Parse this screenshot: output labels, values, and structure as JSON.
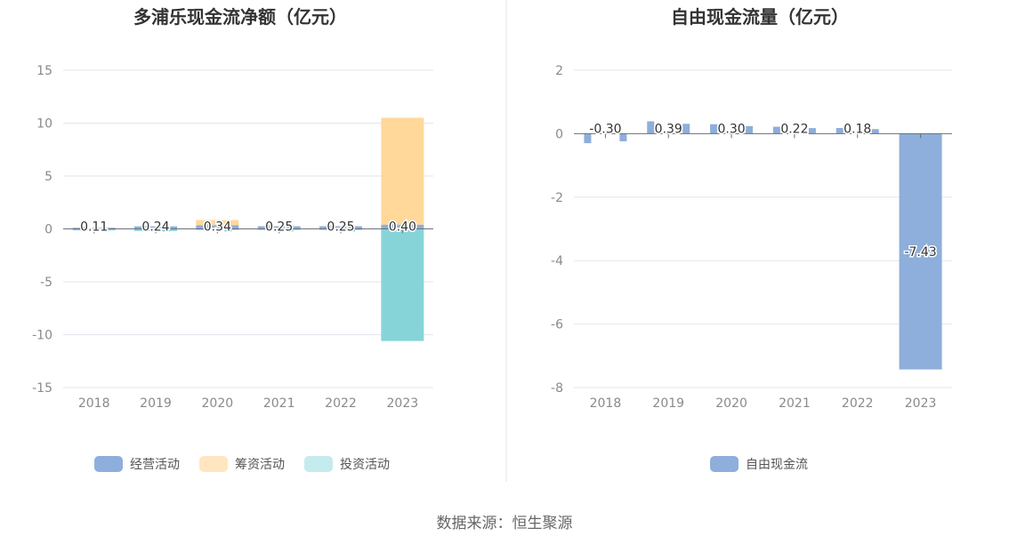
{
  "source": "数据来源：恒生聚源",
  "chart_data": [
    {
      "type": "bar",
      "title": "多浦乐现金流净额（亿元）",
      "categories": [
        "2018",
        "2019",
        "2020",
        "2021",
        "2022",
        "2023"
      ],
      "ylim": [
        -15,
        15
      ],
      "yticks": [
        15,
        10,
        5,
        0,
        -5,
        -10,
        -15
      ],
      "grid": true,
      "legend_position": "bottom",
      "series": [
        {
          "name": "经营活动",
          "color": "#8eaedb",
          "values": [
            0.11,
            0.24,
            0.34,
            0.25,
            0.25,
            0.4
          ]
        },
        {
          "name": "筹资活动",
          "color": "#ffd89a",
          "values": [
            0.0,
            0.0,
            0.5,
            0.0,
            0.0,
            10.1
          ]
        },
        {
          "name": "投资活动",
          "color": "#87d4d8",
          "values": [
            -0.15,
            -0.2,
            -0.1,
            -0.1,
            -0.1,
            -10.6
          ]
        }
      ],
      "data_labels": [
        "0.11",
        "0.24",
        "0.34",
        "0.25",
        "0.25",
        "0.40"
      ],
      "legend_colors": [
        "#8eaedb",
        "#ffe6c1",
        "#c4ebee"
      ]
    },
    {
      "type": "bar",
      "title": "自由现金流量（亿元）",
      "categories": [
        "2018",
        "2019",
        "2020",
        "2021",
        "2022",
        "2023"
      ],
      "ylim": [
        -8,
        2
      ],
      "yticks": [
        2,
        0,
        -2,
        -4,
        -6,
        -8
      ],
      "grid": true,
      "legend_position": "bottom",
      "series": [
        {
          "name": "自由现金流",
          "color": "#8eaedb",
          "values": [
            -0.3,
            0.39,
            0.3,
            0.22,
            0.18,
            -7.43
          ]
        }
      ],
      "data_labels": [
        "-0.30",
        "0.39",
        "0.30",
        "0.22",
        "0.18",
        "-7.43"
      ],
      "legend_colors": [
        "#8eaedb"
      ]
    }
  ]
}
